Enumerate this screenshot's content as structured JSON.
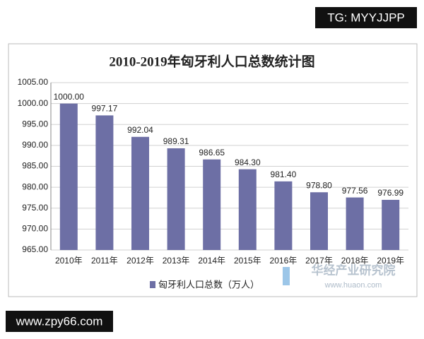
{
  "chart_data": {
    "type": "bar",
    "title": "2010-2019年匈牙利人口总数统计图",
    "categories": [
      "2010年",
      "2011年",
      "2012年",
      "2013年",
      "2014年",
      "2015年",
      "2016年",
      "2017年",
      "2018年",
      "2019年"
    ],
    "series": [
      {
        "name": "匈牙利人口总数（万人）",
        "color": "#6d6fa5",
        "values": [
          1000.0,
          997.17,
          992.04,
          989.31,
          986.65,
          984.3,
          981.4,
          978.8,
          977.56,
          976.99
        ],
        "value_labels": [
          "1000.00",
          "997.17",
          "992.04",
          "989.31",
          "986.65",
          "984.30",
          "981.40",
          "978.80",
          "977.56",
          "976.99"
        ]
      }
    ],
    "ylim": [
      965,
      1005
    ],
    "yticks": [
      {
        "value": 965,
        "label": "965.00"
      },
      {
        "value": 970,
        "label": "970.00"
      },
      {
        "value": 975,
        "label": "975.00"
      },
      {
        "value": 980,
        "label": "980.00"
      },
      {
        "value": 985,
        "label": "985.00"
      },
      {
        "value": 990,
        "label": "990.00"
      },
      {
        "value": 995,
        "label": "995.00"
      },
      {
        "value": 1000,
        "label": "1000.00"
      },
      {
        "value": 1005,
        "label": "1005.00"
      }
    ],
    "grid": true,
    "legend": "bottom"
  },
  "overlays": {
    "tag": "TG: MYYJJPP",
    "site": "www.zpy66.com",
    "watermark": "华经产业研究院",
    "watermark_url": "www.huaon.com"
  }
}
